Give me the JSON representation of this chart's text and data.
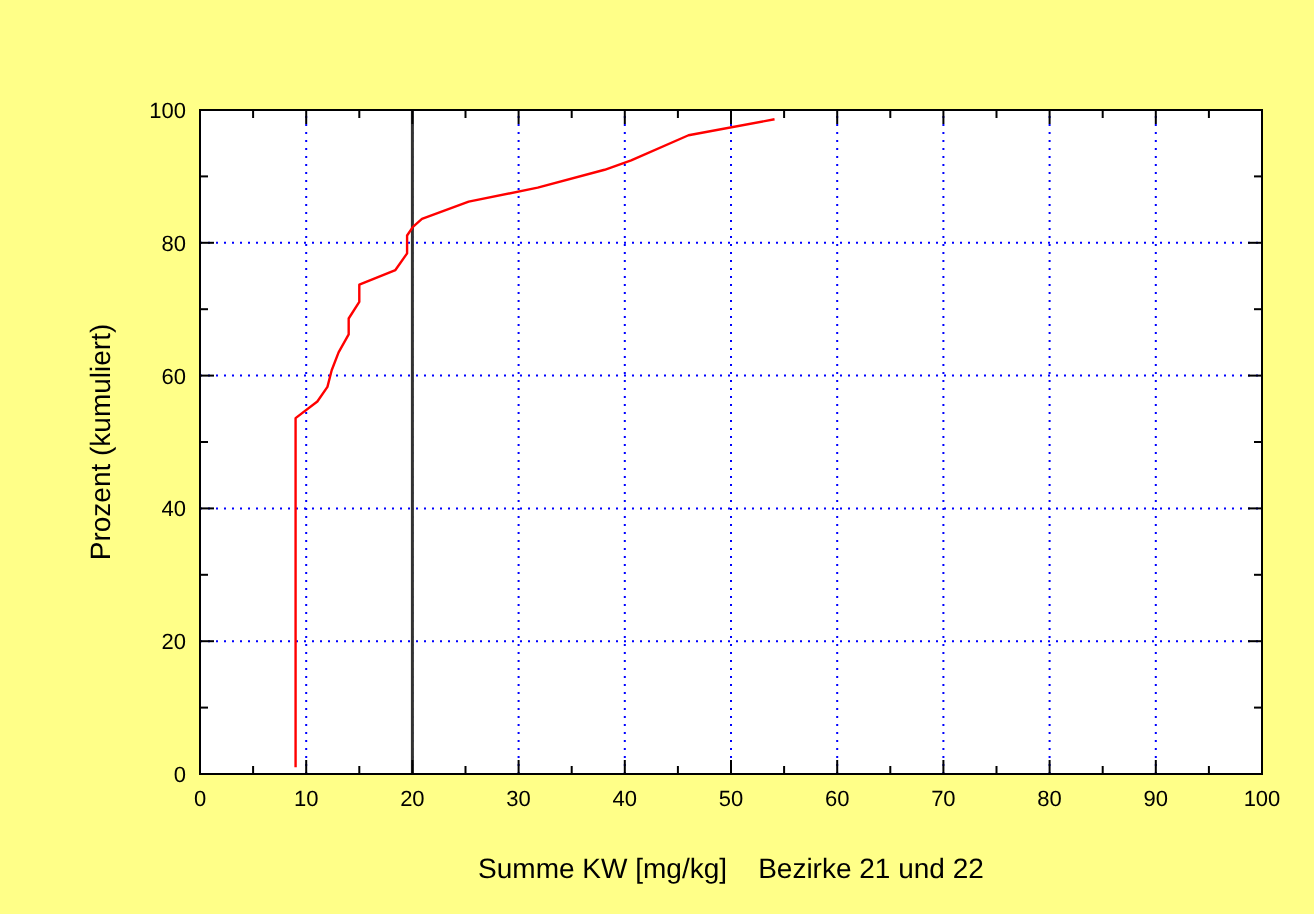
{
  "chart_data": {
    "type": "line",
    "xlabel": "Summe KW [mg/kg]    Bezirke 21 und 22",
    "ylabel": "Prozent (kumuliert)",
    "xlim": [
      0,
      100
    ],
    "ylim": [
      0,
      100
    ],
    "xticks": [
      0,
      10,
      20,
      30,
      40,
      50,
      60,
      70,
      80,
      90,
      100
    ],
    "yticks": [
      0,
      20,
      40,
      60,
      80,
      100
    ],
    "grid": true,
    "line_style": "solid",
    "series": [
      {
        "color": "#ff0000",
        "x": [
          9.0,
          9.0,
          11.05,
          12.0,
          12.4,
          13.05,
          14.0,
          14.0,
          15.0,
          15.0,
          18.4,
          19.5,
          19.5,
          20.05,
          20.9,
          25.3,
          31.8,
          38.1,
          40.6,
          46.0,
          54.1
        ],
        "values": [
          1,
          53.6,
          56.1,
          58.3,
          60.8,
          63.5,
          66.2,
          68.6,
          71.1,
          73.7,
          75.9,
          78.4,
          81.1,
          82.4,
          83.6,
          86.2,
          88.3,
          91.0,
          92.4,
          96.2,
          98.6
        ]
      }
    ],
    "ref_lines": [
      {
        "axis": "x",
        "value": 20,
        "color": "#333333"
      }
    ]
  }
}
